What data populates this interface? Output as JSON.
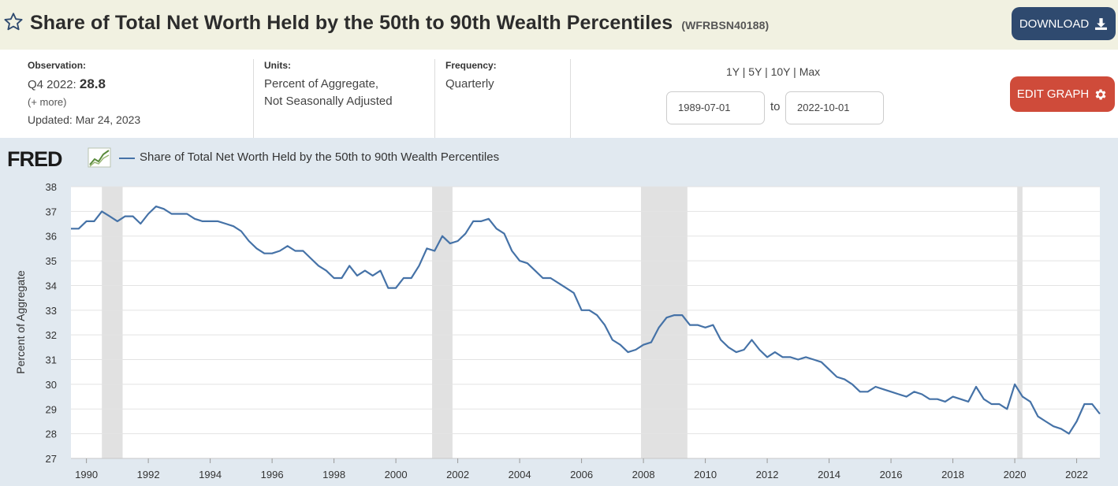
{
  "header": {
    "title": "Share of Total Net Worth Held by the 50th to 90th Wealth Percentiles",
    "series_id": "(WFRBSN40188)",
    "download_label": "DOWNLOAD"
  },
  "meta": {
    "observation_head": "Observation:",
    "observation_period": "Q4 2022:",
    "observation_value": "28.8",
    "more_link": "(+ more)",
    "updated": "Updated: Mar 24, 2023",
    "units_head": "Units:",
    "units_line1": "Percent of Aggregate,",
    "units_line2": "Not Seasonally Adjusted",
    "frequency_head": "Frequency:",
    "frequency": "Quarterly"
  },
  "controls": {
    "range_1y": "1Y",
    "range_5y": "5Y",
    "range_10y": "10Y",
    "range_max": "Max",
    "sep": "|",
    "start_date": "1989-07-01",
    "to_label": "to",
    "end_date": "2022-10-01",
    "edit_label": "EDIT GRAPH"
  },
  "branding": {
    "logo": "FRED"
  },
  "colors": {
    "line": "#4572a7",
    "recession": "#e1e1e1",
    "download_btn": "#2f4a6f",
    "edit_btn": "#cf4b3a",
    "chart_bg": "#e1e9f0"
  },
  "chart_data": {
    "type": "line",
    "title": "",
    "ylabel": "Percent of Aggregate",
    "xlabel": "",
    "ylim": [
      27,
      38
    ],
    "xlim": [
      1989.5,
      2022.75
    ],
    "yticks": [
      27,
      28,
      29,
      30,
      31,
      32,
      33,
      34,
      35,
      36,
      37,
      38
    ],
    "xticks": [
      1990,
      1992,
      1994,
      1996,
      1998,
      2000,
      2002,
      2004,
      2006,
      2008,
      2010,
      2012,
      2014,
      2016,
      2018,
      2020,
      2022
    ],
    "grid": true,
    "legend": "top-left",
    "recessions": [
      [
        1990.5,
        1991.17
      ],
      [
        2001.17,
        2001.83
      ],
      [
        2007.92,
        2009.42
      ],
      [
        2020.08,
        2020.25
      ]
    ],
    "series": [
      {
        "name": "Share of Total Net Worth Held by the 50th to 90th Wealth Percentiles",
        "x_start": 1989.5,
        "x_step": 0.25,
        "values": [
          36.3,
          36.3,
          36.6,
          36.6,
          37.0,
          36.8,
          36.6,
          36.8,
          36.8,
          36.5,
          36.9,
          37.2,
          37.1,
          36.9,
          36.9,
          36.9,
          36.7,
          36.6,
          36.6,
          36.6,
          36.5,
          36.4,
          36.2,
          35.8,
          35.5,
          35.3,
          35.3,
          35.4,
          35.6,
          35.4,
          35.4,
          35.1,
          34.8,
          34.6,
          34.3,
          34.3,
          34.8,
          34.4,
          34.6,
          34.4,
          34.6,
          33.9,
          33.9,
          34.3,
          34.3,
          34.8,
          35.5,
          35.4,
          36.0,
          35.7,
          35.8,
          36.1,
          36.6,
          36.6,
          36.7,
          36.3,
          36.1,
          35.4,
          35.0,
          34.9,
          34.6,
          34.3,
          34.3,
          34.1,
          33.9,
          33.7,
          33.0,
          33.0,
          32.8,
          32.4,
          31.8,
          31.6,
          31.3,
          31.4,
          31.6,
          31.7,
          32.3,
          32.7,
          32.8,
          32.8,
          32.4,
          32.4,
          32.3,
          32.4,
          31.8,
          31.5,
          31.3,
          31.4,
          31.8,
          31.4,
          31.1,
          31.3,
          31.1,
          31.1,
          31.0,
          31.1,
          31.0,
          30.9,
          30.6,
          30.3,
          30.2,
          30.0,
          29.7,
          29.7,
          29.9,
          29.8,
          29.7,
          29.6,
          29.5,
          29.7,
          29.6,
          29.4,
          29.4,
          29.3,
          29.5,
          29.4,
          29.3,
          29.9,
          29.4,
          29.2,
          29.2,
          29.0,
          30.0,
          29.5,
          29.3,
          28.7,
          28.5,
          28.3,
          28.2,
          28.0,
          28.5,
          29.2,
          29.2,
          28.8
        ]
      }
    ]
  }
}
